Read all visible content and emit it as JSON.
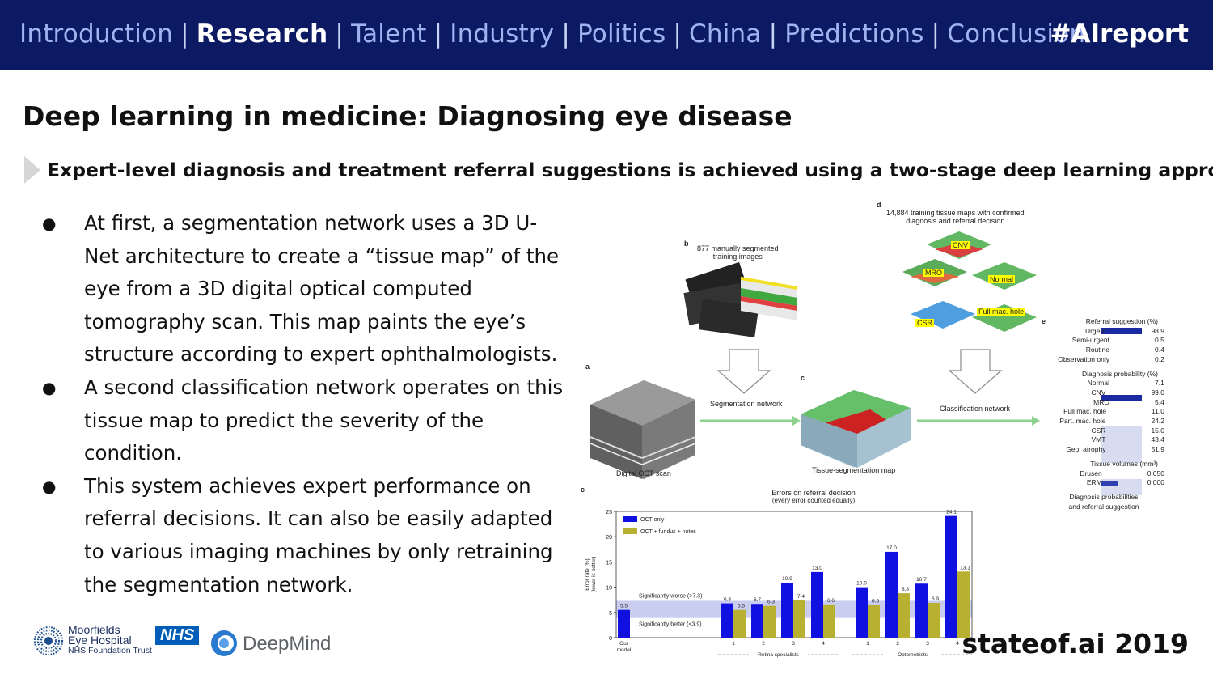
{
  "nav": {
    "items": [
      "Introduction",
      "Research",
      "Talent",
      "Industry",
      "Politics",
      "China",
      "Predictions",
      "Conclusion"
    ],
    "active": "Research",
    "separator": "|",
    "hashtag": "#AIreport"
  },
  "slide": {
    "title": "Deep learning in medicine: Diagnosing eye disease",
    "subtitle": "Expert-level diagnosis and treatment referral suggestions is achieved using a two-stage deep learning approach.",
    "bullets": [
      "At first, a segmentation network uses a 3D U-Net architecture to create a “tissue map” of the eye from a 3D digital optical computed tomography scan. This map paints the eye’s structure according to expert ophthalmologists.",
      "A second classification network operates on this tissue map to predict the severity of the condition.",
      "This system achieves expert performance on referral decisions. It can also be easily adapted to various imaging machines by only retraining the segmentation network."
    ],
    "bullet_glyph": "●"
  },
  "figure": {
    "panel_letters": {
      "a": "a",
      "b": "b",
      "c": "c",
      "d": "d",
      "e": "e",
      "chart": "c"
    },
    "b_text": "877 manually segmented\ntraining images",
    "d_text": "14,884 training tissue maps with confirmed\ndiagnosis and referral decision",
    "a_caption": "Digital OCT scan",
    "c_caption": "Tissue-segmentation map",
    "seg_network": "Segmentation network",
    "cls_network": "Classification network",
    "tissue_tags": [
      "CNV",
      "MRO",
      "Normal",
      "Full mac. hole",
      "CSR"
    ],
    "e_panel": {
      "referral_title": "Referral suggestion (%)",
      "referral": [
        {
          "label": "Urgent",
          "value": "98.9"
        },
        {
          "label": "Semi-urgent",
          "value": "0.5"
        },
        {
          "label": "Routine",
          "value": "0.4"
        },
        {
          "label": "Observation only",
          "value": "0.2"
        }
      ],
      "diagnosis_title": "Diagnosis probability (%)",
      "diagnosis": [
        {
          "label": "Normal",
          "value": "7.1"
        },
        {
          "label": "CNV",
          "value": "99.0"
        },
        {
          "label": "MRO",
          "value": "5.4"
        },
        {
          "label": "Full mac. hole",
          "value": "11.0"
        },
        {
          "label": "Part. mac. hole",
          "value": "24.2"
        },
        {
          "label": "CSR",
          "value": "15.0"
        },
        {
          "label": "VMT",
          "value": "43.4"
        },
        {
          "label": "Geo. atrophy",
          "value": "51.9"
        }
      ],
      "volumes_title": "Tissue volumes (mm³)",
      "volumes": [
        {
          "label": "Drusen",
          "value": "0.050"
        },
        {
          "label": "ERM",
          "value": "0.000"
        }
      ],
      "caption": "Diagnosis probabilities\nand referral suggestion"
    },
    "colors": {
      "oct_only": "#1010e0",
      "oct_plus": "#b8b030",
      "band": "#c9cdf0",
      "tag": "#ffff00"
    }
  },
  "chart_data": {
    "type": "bar",
    "title": "Errors on referral decision",
    "subtitle": "(every error counted equally)",
    "ylabel": "Error rate (%)\n(lower is better)",
    "ylim": [
      0,
      25
    ],
    "yticks": [
      0,
      5,
      10,
      15,
      20,
      25
    ],
    "legend": [
      "OCT only",
      "OCT + fundus + notes"
    ],
    "legend_position": "top-left",
    "our_model": {
      "label": "Our\nmodel",
      "value": 5.5
    },
    "groups": [
      {
        "name": "Retina specialists",
        "categories": [
          "1",
          "2",
          "3",
          "4"
        ],
        "oct_only": [
          6.8,
          6.7,
          10.9,
          13.0
        ],
        "oct_plus": [
          5.5,
          6.3,
          7.4,
          6.6
        ]
      },
      {
        "name": "Optometrists",
        "categories": [
          "1",
          "2",
          "3",
          "4"
        ],
        "oct_only": [
          10.0,
          17.0,
          10.7,
          24.1
        ],
        "oct_plus": [
          6.5,
          8.8,
          6.9,
          13.1
        ]
      }
    ],
    "band": [
      3.9,
      7.3
    ],
    "band_labels": {
      "worse": "Significantly worse (>7.3)",
      "better": "Significantly better (<3.9)"
    }
  },
  "logos": {
    "moorfields_line1": "Moorfields",
    "moorfields_line2": "Eye Hospital",
    "moorfields_line3": "NHS Foundation Trust",
    "nhs": "NHS",
    "deepmind": "DeepMind"
  },
  "footer": {
    "brand": "stateof.ai 2019"
  }
}
